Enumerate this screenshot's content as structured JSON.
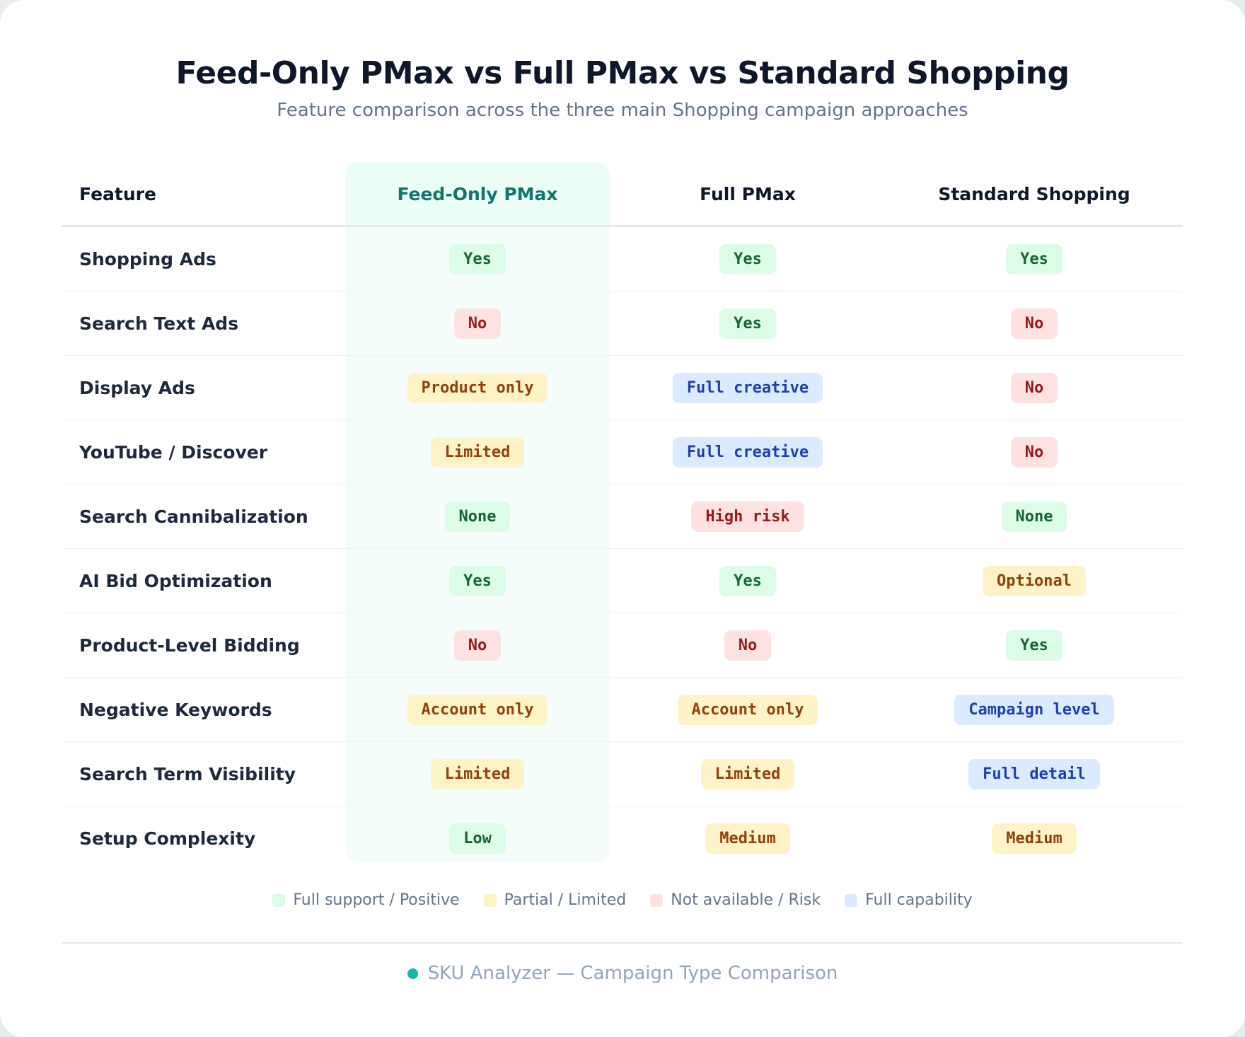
{
  "header": {
    "title": "Feed-Only PMax vs Full PMax vs Standard Shopping",
    "subtitle": "Feature comparison across the three main Shopping campaign approaches"
  },
  "table": {
    "columns": [
      "Feature",
      "Feed-Only PMax",
      "Full PMax",
      "Standard Shopping"
    ],
    "rows": [
      {
        "feature": "Shopping Ads",
        "cells": [
          {
            "text": "Yes",
            "tone": "green"
          },
          {
            "text": "Yes",
            "tone": "green"
          },
          {
            "text": "Yes",
            "tone": "green"
          }
        ]
      },
      {
        "feature": "Search Text Ads",
        "cells": [
          {
            "text": "No",
            "tone": "red"
          },
          {
            "text": "Yes",
            "tone": "green"
          },
          {
            "text": "No",
            "tone": "red"
          }
        ]
      },
      {
        "feature": "Display Ads",
        "cells": [
          {
            "text": "Product only",
            "tone": "yellow"
          },
          {
            "text": "Full creative",
            "tone": "blue"
          },
          {
            "text": "No",
            "tone": "red"
          }
        ]
      },
      {
        "feature": "YouTube / Discover",
        "cells": [
          {
            "text": "Limited",
            "tone": "yellow"
          },
          {
            "text": "Full creative",
            "tone": "blue"
          },
          {
            "text": "No",
            "tone": "red"
          }
        ]
      },
      {
        "feature": "Search Cannibalization",
        "cells": [
          {
            "text": "None",
            "tone": "green"
          },
          {
            "text": "High risk",
            "tone": "red"
          },
          {
            "text": "None",
            "tone": "green"
          }
        ]
      },
      {
        "feature": "AI Bid Optimization",
        "cells": [
          {
            "text": "Yes",
            "tone": "green"
          },
          {
            "text": "Yes",
            "tone": "green"
          },
          {
            "text": "Optional",
            "tone": "yellow"
          }
        ]
      },
      {
        "feature": "Product-Level Bidding",
        "cells": [
          {
            "text": "No",
            "tone": "red"
          },
          {
            "text": "No",
            "tone": "red"
          },
          {
            "text": "Yes",
            "tone": "green"
          }
        ]
      },
      {
        "feature": "Negative Keywords",
        "cells": [
          {
            "text": "Account only",
            "tone": "yellow"
          },
          {
            "text": "Account only",
            "tone": "yellow"
          },
          {
            "text": "Campaign level",
            "tone": "blue"
          }
        ]
      },
      {
        "feature": "Search Term Visibility",
        "cells": [
          {
            "text": "Limited",
            "tone": "yellow"
          },
          {
            "text": "Limited",
            "tone": "yellow"
          },
          {
            "text": "Full detail",
            "tone": "blue"
          }
        ]
      },
      {
        "feature": "Setup Complexity",
        "cells": [
          {
            "text": "Low",
            "tone": "green"
          },
          {
            "text": "Medium",
            "tone": "yellow"
          },
          {
            "text": "Medium",
            "tone": "yellow"
          }
        ]
      }
    ]
  },
  "legend": [
    {
      "label": "Full support / Positive",
      "tone": "green"
    },
    {
      "label": "Partial / Limited",
      "tone": "yellow"
    },
    {
      "label": "Not available / Risk",
      "tone": "red"
    },
    {
      "label": "Full capability",
      "tone": "blue"
    }
  ],
  "footer": {
    "text": "SKU Analyzer — Campaign Type Comparison"
  }
}
